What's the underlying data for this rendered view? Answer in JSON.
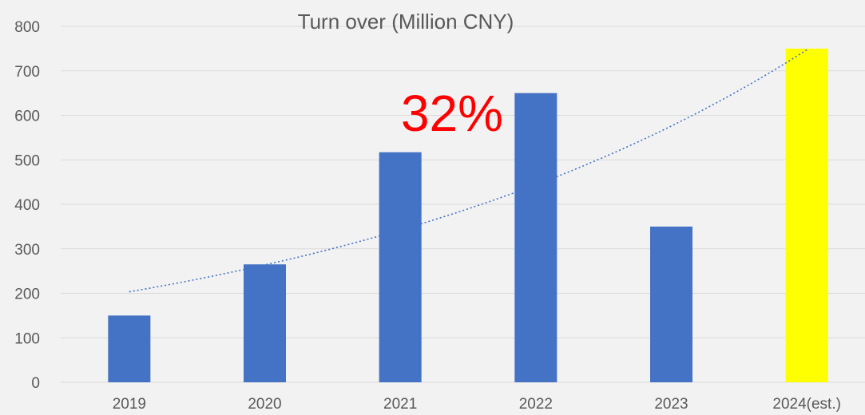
{
  "chart_data": {
    "type": "bar",
    "title": "Turn over (Million CNY)",
    "categories": [
      "2019",
      "2020",
      "2021",
      "2022",
      "2023",
      "2024(est.)"
    ],
    "values": [
      150,
      265,
      517,
      650,
      350,
      750
    ],
    "ylim": [
      0,
      800
    ],
    "yticks": [
      0,
      100,
      200,
      300,
      400,
      500,
      600,
      700,
      800
    ],
    "bar_colors": [
      "#4472c4",
      "#4472c4",
      "#4472c4",
      "#4472c4",
      "#4472c4",
      "#ffff00"
    ],
    "trendline": {
      "type": "exponential",
      "style": "dotted",
      "color": "#4472c4"
    },
    "annotation": {
      "text": "32%",
      "color": "#ff0000"
    },
    "grid": true,
    "legend": "none"
  }
}
